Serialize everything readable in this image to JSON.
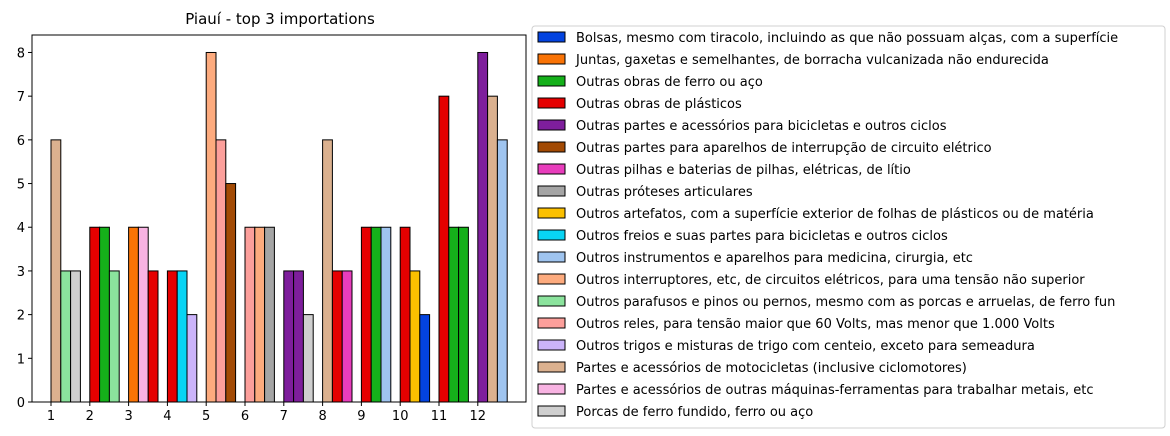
{
  "chart_data": {
    "type": "bar",
    "title": "Piauí - top 3 importations",
    "xlabel": "",
    "ylabel": "",
    "ylim": [
      0,
      8.4
    ],
    "yticks": [
      0,
      1,
      2,
      3,
      4,
      5,
      6,
      7,
      8
    ],
    "categories": [
      "1",
      "2",
      "3",
      "4",
      "5",
      "6",
      "7",
      "8",
      "9",
      "10",
      "11",
      "12"
    ],
    "legend_position": "outside-right",
    "series": [
      {
        "name": "Bolsas, mesmo com tiracolo, incluindo as que não possuam alças, com a superfície",
        "color": "#0343df",
        "values": [
          0,
          0,
          0,
          0,
          0,
          0,
          0,
          0,
          0,
          2,
          0,
          0
        ]
      },
      {
        "name": "Juntas, gaxetas e semelhantes, de borracha vulcanizada não endurecida",
        "color": "#f97306",
        "values": [
          0,
          0,
          4,
          0,
          0,
          0,
          0,
          0,
          0,
          0,
          0,
          0
        ]
      },
      {
        "name": "Outras obras de ferro ou aço",
        "color": "#15b01a",
        "values": [
          0,
          4,
          0,
          0,
          0,
          0,
          0,
          0,
          4,
          0,
          4,
          0
        ]
      },
      {
        "name": "Outras obras de plásticos",
        "color": "#e50000",
        "values": [
          0,
          4,
          3,
          3,
          0,
          0,
          0,
          3,
          4,
          4,
          7,
          0
        ]
      },
      {
        "name": "Outras partes e acessórios para bicicletas e outros ciclos",
        "color": "#7e1e9c",
        "values": [
          0,
          0,
          0,
          0,
          0,
          0,
          3,
          0,
          0,
          0,
          0,
          8
        ]
      },
      {
        "name": "Outras partes para aparelhos de interrupção de circuito elétrico",
        "color": "#a24a04",
        "values": [
          0,
          0,
          0,
          0,
          5,
          0,
          0,
          0,
          0,
          0,
          0,
          0
        ]
      },
      {
        "name": "Outras pilhas e baterias de pilhas, elétricas, de lítio",
        "color": "#e83dbc",
        "values": [
          0,
          0,
          0,
          0,
          0,
          0,
          0,
          3,
          0,
          0,
          0,
          0
        ]
      },
      {
        "name": "Outras próteses articulares",
        "color": "#a5a5a5",
        "values": [
          0,
          0,
          0,
          0,
          0,
          4,
          0,
          0,
          0,
          0,
          0,
          0
        ]
      },
      {
        "name": "Outros artefatos, com a superfície exterior de folhas de plásticos ou de matéria",
        "color": "#fbc000",
        "values": [
          0,
          0,
          0,
          0,
          0,
          0,
          0,
          0,
          0,
          3,
          0,
          0
        ]
      },
      {
        "name": "Outros freios e suas partes para bicicletas e outros ciclos",
        "color": "#08d4f4",
        "values": [
          0,
          0,
          0,
          3,
          0,
          0,
          0,
          0,
          0,
          0,
          0,
          0
        ]
      },
      {
        "name": "Outros instrumentos e aparelhos para medicina, cirurgia, etc",
        "color": "#9fc4ef",
        "values": [
          0,
          0,
          0,
          0,
          0,
          0,
          0,
          0,
          4,
          0,
          0,
          6
        ]
      },
      {
        "name": "Outros interruptores, etc, de circuitos elétricos, para uma tensão não superior",
        "color": "#fdab7e",
        "values": [
          0,
          0,
          0,
          0,
          8,
          4,
          0,
          0,
          0,
          0,
          0,
          0
        ]
      },
      {
        "name": "Outros parafusos e pinos ou pernos, mesmo com as porcas e arruelas, de ferro fun",
        "color": "#8be39d",
        "values": [
          3,
          3,
          0,
          0,
          0,
          0,
          0,
          0,
          0,
          0,
          0,
          0
        ]
      },
      {
        "name": "Outros reles, para tensão maior que 60 Volts, mas menor que 1.000 Volts",
        "color": "#fc9f9b",
        "values": [
          0,
          0,
          0,
          0,
          6,
          4,
          0,
          0,
          0,
          0,
          0,
          0
        ]
      },
      {
        "name": "Outros trigos e misturas de trigo com centeio, exceto para semeadura",
        "color": "#cbb4fa",
        "values": [
          0,
          0,
          0,
          2,
          0,
          0,
          0,
          0,
          0,
          0,
          0,
          0
        ]
      },
      {
        "name": "Partes e acessórios de motocicletas (inclusive ciclomotores)",
        "color": "#dbb18f",
        "values": [
          6,
          0,
          0,
          0,
          0,
          0,
          0,
          6,
          0,
          0,
          0,
          7
        ]
      },
      {
        "name": "Partes e acessórios de outras máquinas-ferramentas para trabalhar metais, etc",
        "color": "#f8b3e2",
        "values": [
          0,
          0,
          4,
          0,
          0,
          0,
          0,
          0,
          0,
          0,
          0,
          0
        ]
      },
      {
        "name": "Porcas de ferro fundido, ferro ou aço",
        "color": "#cfcfcf",
        "values": [
          3,
          0,
          0,
          0,
          0,
          0,
          2,
          0,
          0,
          0,
          0,
          0
        ]
      }
    ],
    "bars": [
      {
        "category": "1",
        "series": "Partes e acessórios de motocicletas (inclusive ciclomotores)",
        "value": 6
      },
      {
        "category": "1",
        "series": "Outros parafusos e pinos ou pernos, mesmo com as porcas e arruelas, de ferro fun",
        "value": 3
      },
      {
        "category": "1",
        "series": "Porcas de ferro fundido, ferro ou aço",
        "value": 3
      },
      {
        "category": "2",
        "series": "Outras obras de plásticos",
        "value": 4
      },
      {
        "category": "2",
        "series": "Outras obras de ferro ou aço",
        "value": 4
      },
      {
        "category": "2",
        "series": "Outros parafusos e pinos ou pernos, mesmo com as porcas e arruelas, de ferro fun",
        "value": 3
      },
      {
        "category": "3",
        "series": "Juntas, gaxetas e semelhantes, de borracha vulcanizada não endurecida",
        "value": 4
      },
      {
        "category": "3",
        "series": "Partes e acessórios de outras máquinas-ferramentas para trabalhar metais, etc",
        "value": 4
      },
      {
        "category": "3",
        "series": "Outras obras de plásticos",
        "value": 3
      },
      {
        "category": "4",
        "series": "Outras obras de plásticos",
        "value": 3
      },
      {
        "category": "4",
        "series": "Outros freios e suas partes para bicicletas e outros ciclos",
        "value": 3
      },
      {
        "category": "4",
        "series": "Outros trigos e misturas de trigo com centeio, exceto para semeadura",
        "value": 2
      },
      {
        "category": "5",
        "series": "Outros interruptores, etc, de circuitos elétricos, para uma tensão não superior",
        "value": 8
      },
      {
        "category": "5",
        "series": "Outros reles, para tensão maior que 60 Volts, mas menor que 1.000 Volts",
        "value": 6
      },
      {
        "category": "5",
        "series": "Outras partes para aparelhos de interrupção de circuito elétrico",
        "value": 5
      },
      {
        "category": "6",
        "series": "Outros reles, para tensão maior que 60 Volts, mas menor que 1.000 Volts",
        "value": 4
      },
      {
        "category": "6",
        "series": "Outros interruptores, etc, de circuitos elétricos, para uma tensão não superior",
        "value": 4
      },
      {
        "category": "6",
        "series": "Outras próteses articulares",
        "value": 4
      },
      {
        "category": "7",
        "series": "Outras partes e acessórios para bicicletas e outros ciclos",
        "value": 3
      },
      {
        "category": "7",
        "series": "Outras partes e acessórios para bicicletas e outros ciclos",
        "value": 3
      },
      {
        "category": "7",
        "series": "Porcas de ferro fundido, ferro ou aço",
        "value": 2
      },
      {
        "category": "8",
        "series": "Partes e acessórios de motocicletas (inclusive ciclomotores)",
        "value": 6
      },
      {
        "category": "8",
        "series": "Outras obras de plásticos",
        "value": 3
      },
      {
        "category": "8",
        "series": "Outras pilhas e baterias de pilhas, elétricas, de lítio",
        "value": 3
      },
      {
        "category": "9",
        "series": "Outras obras de plásticos",
        "value": 4
      },
      {
        "category": "9",
        "series": "Outras obras de ferro ou aço",
        "value": 4
      },
      {
        "category": "9",
        "series": "Outros instrumentos e aparelhos para medicina, cirurgia, etc",
        "value": 4
      },
      {
        "category": "10",
        "series": "Outras obras de plásticos",
        "value": 4
      },
      {
        "category": "10",
        "series": "Outros artefatos, com a superfície exterior de folhas de plásticos ou de matéria",
        "value": 3
      },
      {
        "category": "10",
        "series": "Bolsas, mesmo com tiracolo, incluindo as que não possuam alças, com a superfície",
        "value": 2
      },
      {
        "category": "11",
        "series": "Outras obras de plásticos",
        "value": 7
      },
      {
        "category": "11",
        "series": "Outras obras de ferro ou aço",
        "value": 4
      },
      {
        "category": "11",
        "series": "Outras obras de ferro ou aço",
        "value": 4
      },
      {
        "category": "12",
        "series": "Outras partes e acessórios para bicicletas e outros ciclos",
        "value": 8
      },
      {
        "category": "12",
        "series": "Partes e acessórios de motocicletas (inclusive ciclomotores)",
        "value": 7
      },
      {
        "category": "12",
        "series": "Outros instrumentos e aparelhos para medicina, cirurgia, etc",
        "value": 6
      }
    ]
  }
}
